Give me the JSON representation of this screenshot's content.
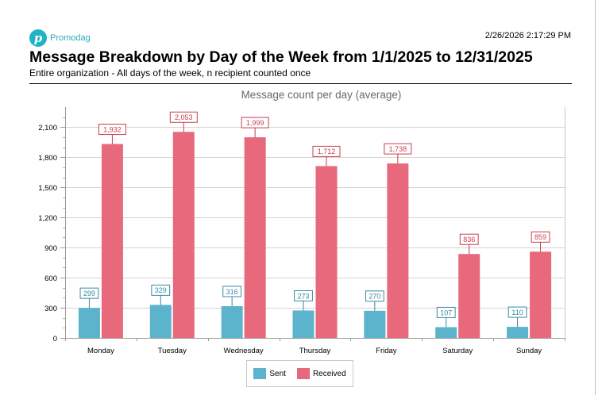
{
  "header": {
    "brand_name": "Promodag",
    "brand_mark": "p",
    "brand_icon": "promodag-logo-icon",
    "timestamp": "2/26/2026 2:17:29 PM",
    "title": "Message Breakdown by Day of the Week from 1/1/2025 to 12/31/2025",
    "subtitle": "Entire organization - All days of the week, n recipient counted once"
  },
  "colors": {
    "sent": "#5cb3cc",
    "received": "#e8697b",
    "sent_label": "#3a8aa3",
    "received_label": "#c5404f",
    "brand": "#1fb3c4"
  },
  "chart_data": {
    "type": "bar",
    "title": "Message count per day (average)",
    "categories": [
      "Monday",
      "Tuesday",
      "Wednesday",
      "Thursday",
      "Friday",
      "Saturday",
      "Sunday"
    ],
    "series": [
      {
        "name": "Sent",
        "values": [
          299,
          329,
          316,
          273,
          270,
          107,
          110
        ]
      },
      {
        "name": "Received",
        "values": [
          1932,
          2053,
          1999,
          1712,
          1738,
          836,
          859
        ]
      }
    ],
    "ylim": [
      0,
      2300
    ],
    "yticks": [
      0,
      300,
      600,
      900,
      1200,
      1500,
      1800,
      2100
    ],
    "ytick_labels": [
      "0",
      "300",
      "600",
      "900",
      "1,200",
      "1,500",
      "1,800",
      "2,100"
    ],
    "minor_tick_step": 100,
    "xlabel": "",
    "ylabel": "",
    "grid": true,
    "legend_position": "bottom-center"
  },
  "legend": {
    "items": [
      {
        "label": "Sent",
        "color_key": "sent"
      },
      {
        "label": "Received",
        "color_key": "received"
      }
    ]
  }
}
